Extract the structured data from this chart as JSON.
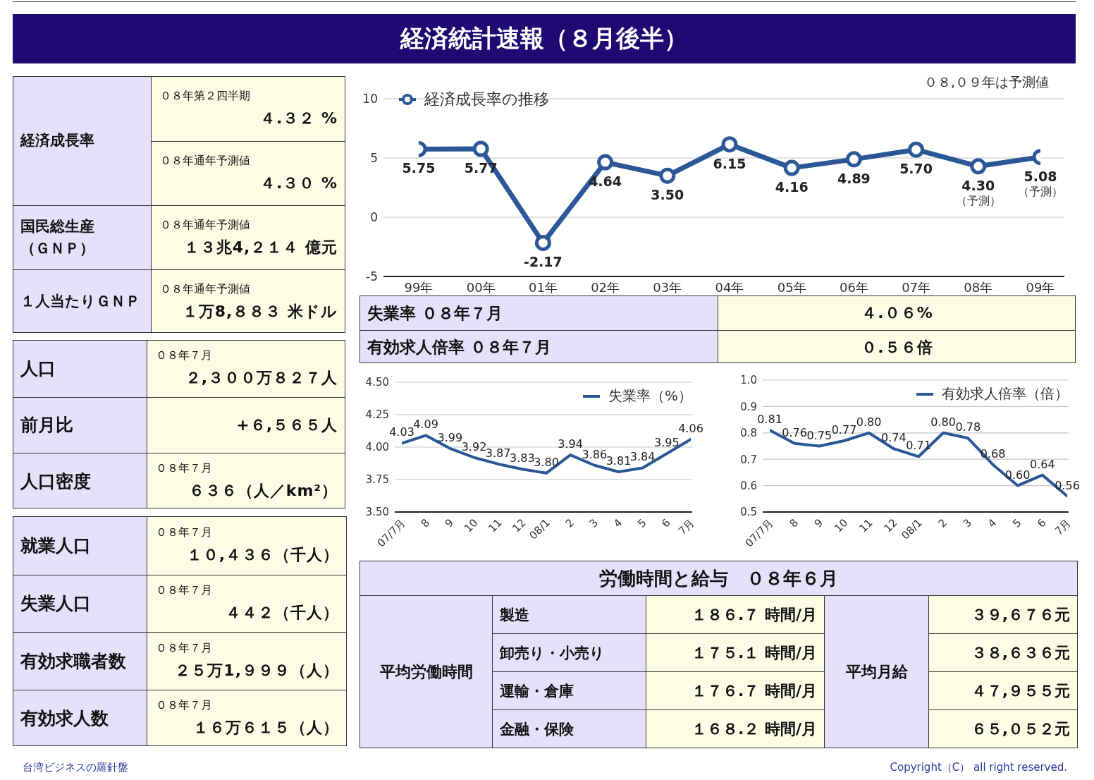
{
  "chart_data": [
    {
      "type": "other",
      "title": "経済統計速報（８月後半）",
      "annotations": [
        "台湾ビジネスの羅針盤",
        "Copyright（C） all right reserved."
      ]
    },
    {
      "type": "other",
      "categories": [
        "経済成長率",
        null,
        "国民総生産（ＧＮＰ）",
        "１人当たりＧＮＰ"
      ],
      "cell_labels": [
        [
          "０８年第２四半期",
          "４.３２ %"
        ],
        [
          "０８年通年予測値",
          "４.３０ %"
        ],
        [
          "０８年通年予測値",
          "１３兆4,２１４ 億元"
        ],
        [
          "０８年通年予測値",
          "１万8,８８３ 米ドル"
        ]
      ]
    },
    {
      "type": "line",
      "categories": [
        "99年",
        "00年",
        "01年",
        "02年",
        "03年",
        "04年",
        "05年",
        "06年",
        "07年",
        "08年",
        "09年"
      ],
      "series": [
        {
          "name": "経済成長率の推移",
          "color": "#2b5797",
          "values": [
            5.75,
            5.77,
            -2.17,
            4.64,
            3.5,
            6.15,
            4.16,
            4.89,
            5.7,
            4.3,
            5.08
          ],
          "value_labels": [
            "5.75",
            "5.77",
            "-2.17",
            "4.64",
            "3.50",
            "6.15",
            "4.16",
            "4.89",
            "5.70",
            "4.30",
            "5.08"
          ]
        }
      ],
      "ylim": [
        -5,
        10
      ],
      "yticks": [
        -5,
        0,
        5,
        10
      ],
      "grid": "y",
      "legend": "top left",
      "marker": "circle",
      "line_style": "solid",
      "annotations": [
        "０８,０９年は予測値",
        {
          "text": "（予測）",
          "x": "08年",
          "y": 4.3
        },
        {
          "text": "（予測）",
          "x": "09年",
          "y": 5.08
        }
      ]
    },
    {
      "type": "other",
      "categories": [
        "失業率 ０８年７月",
        "有効求人倍率 ０８年７月"
      ],
      "cell_labels": [
        [
          null,
          "４.０６%"
        ],
        [
          null,
          "０.５６倍"
        ]
      ]
    },
    {
      "type": "other",
      "categories": [
        "人口",
        "前月比",
        "人口密度"
      ],
      "cell_labels": [
        [
          "０８年７月",
          "２,３００万８２７人"
        ],
        [
          null,
          "+６,５６５人"
        ],
        [
          "０８年７月",
          "６３６（人／km²）"
        ]
      ]
    },
    {
      "type": "line",
      "categories": [
        "07/7月",
        "8",
        "9",
        "10",
        "11",
        "12",
        "08/1",
        "2",
        "3",
        "4",
        "5",
        "6",
        "7月"
      ],
      "series": [
        {
          "name": "失業率（%）",
          "color": "#2b5797",
          "values": [
            4.03,
            4.09,
            3.99,
            3.92,
            3.87,
            3.83,
            3.8,
            3.94,
            3.86,
            3.81,
            3.84,
            3.95,
            4.06
          ],
          "value_labels": [
            "4.03",
            "4.09",
            "3.99",
            "3.92",
            "3.87",
            "3.83",
            "3.80",
            "3.94",
            "3.86",
            "3.81",
            "3.84",
            "3.95",
            "4.06"
          ]
        }
      ],
      "ylim": [
        3.5,
        4.5
      ],
      "yticks": [
        {
          "value": 3.5,
          "label": "3.50"
        },
        {
          "value": 3.75,
          "label": "3.75"
        },
        {
          "value": 4,
          "label": "4.00"
        },
        {
          "value": 4.25,
          "label": "4.25"
        },
        {
          "value": 4.5,
          "label": "4.50"
        }
      ],
      "grid": "y",
      "legend": "top right",
      "line_style": "solid"
    },
    {
      "type": "line",
      "categories": [
        "07/7月",
        "8",
        "9",
        "10",
        "11",
        "12",
        "08/1",
        "2",
        "3",
        "4",
        "5",
        "6",
        "7月"
      ],
      "series": [
        {
          "name": "有効求人倍率（倍）",
          "color": "#2b5797",
          "values": [
            0.81,
            0.76,
            0.75,
            0.77,
            0.8,
            0.74,
            0.71,
            0.8,
            0.78,
            0.68,
            0.6,
            0.64,
            0.56
          ],
          "value_labels": [
            "0.81",
            "0.76",
            "0.75",
            "0.77",
            "0.80",
            "0.74",
            "0.71",
            "0.80",
            "0.78",
            "0.68",
            "0.60",
            "0.64",
            "0.56"
          ]
        }
      ],
      "ylim": [
        0.5,
        1.0
      ],
      "yticks": [
        0.5,
        0.6,
        0.7,
        0.8,
        0.9,
        {
          "value": 1,
          "label": "1.0"
        }
      ],
      "grid": "y",
      "legend": "top right",
      "line_style": "solid"
    },
    {
      "type": "other",
      "categories": [
        "就業人口",
        "失業人口",
        "有効求職者数",
        "有効求人数"
      ],
      "cell_labels": [
        [
          "０８年７月",
          "１０,４３６（千人）"
        ],
        [
          "０８年７月",
          "４４２（千人）"
        ],
        [
          "０８年７月",
          "２５万1,９９９（人）"
        ],
        [
          "０８年７月",
          "１６万６１５（人）"
        ]
      ]
    },
    {
      "type": "other",
      "title": "労働時間と給与　０８年６月",
      "annotations": [
        "平均労働時間",
        "平均月給"
      ],
      "categories": [
        "製造",
        "卸売り・小売り",
        "運輸・倉庫",
        "金融・保険"
      ],
      "cell_labels": [
        [
          "１８６.７ 時間/月",
          "３９,６７６元"
        ],
        [
          "１７５.１ 時間/月",
          "３８,６３６元"
        ],
        [
          "１７６.７ 時間/月",
          "４７,９５５元"
        ],
        [
          "１６８.２ 時間/月",
          "６５,０５２元"
        ]
      ]
    }
  ]
}
